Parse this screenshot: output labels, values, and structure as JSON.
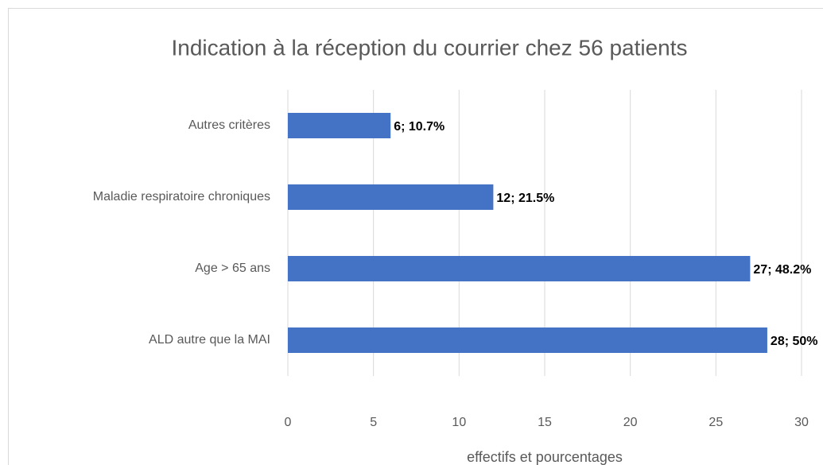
{
  "chart_data": {
    "type": "bar",
    "orientation": "horizontal",
    "title": "Indication à la réception du courrier chez 56 patients",
    "x_label": "effectifs et pourcentages",
    "categories": [
      "Autres critères",
      "Maladie respiratoire chroniques",
      "Age > 65 ans",
      "ALD autre que la MAI"
    ],
    "values": [
      6,
      12,
      27,
      28
    ],
    "value_labels": [
      "6; 10.7%",
      "12; 21.5%",
      "27; 48.2%",
      "28; 50%"
    ],
    "color": "#4472c4",
    "xlim": [
      0,
      30
    ],
    "xticks": [
      0,
      5,
      10,
      15,
      20,
      25,
      30
    ],
    "grid": true
  }
}
